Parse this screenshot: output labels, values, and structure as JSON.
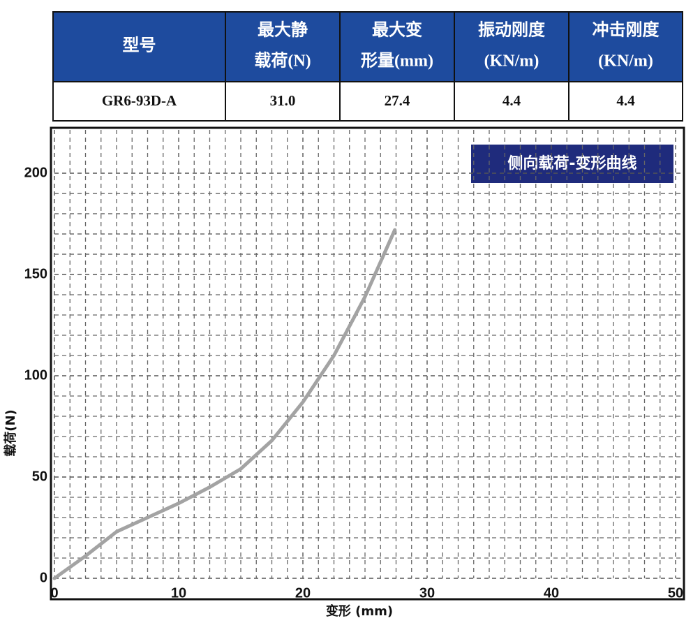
{
  "table": {
    "header": [
      [
        "型号"
      ],
      [
        "最大静",
        "载荷(N)"
      ],
      [
        "最大变",
        "形量(mm)"
      ],
      [
        "振动刚度",
        "(KN/m)"
      ],
      [
        "冲击刚度",
        "(KN/m)"
      ]
    ],
    "rows": [
      [
        "GR6-93D-A",
        "31.0",
        "27.4",
        "4.4",
        "4.4"
      ]
    ]
  },
  "chart_data": {
    "type": "line",
    "legend_title": "侧向载荷-变形曲线",
    "x_label": "变形 (mm)",
    "y_label": "载荷(N)",
    "x": [
      0,
      2.5,
      5,
      7.5,
      10,
      12.5,
      15,
      17.5,
      20,
      22.5,
      25,
      27.4
    ],
    "series": [
      {
        "name": "侧向载荷-变形曲线",
        "color": "#a3a3a3",
        "values": [
          0,
          11,
          23,
          30,
          37,
          45,
          54,
          68,
          87,
          110,
          139,
          172
        ]
      }
    ],
    "xlim": [
      0,
      50
    ],
    "ylim": [
      0,
      220
    ],
    "xticks": [
      0,
      10,
      20,
      30,
      40,
      50
    ],
    "yticks": [
      0,
      50,
      100,
      150,
      200
    ],
    "grid": true
  }
}
